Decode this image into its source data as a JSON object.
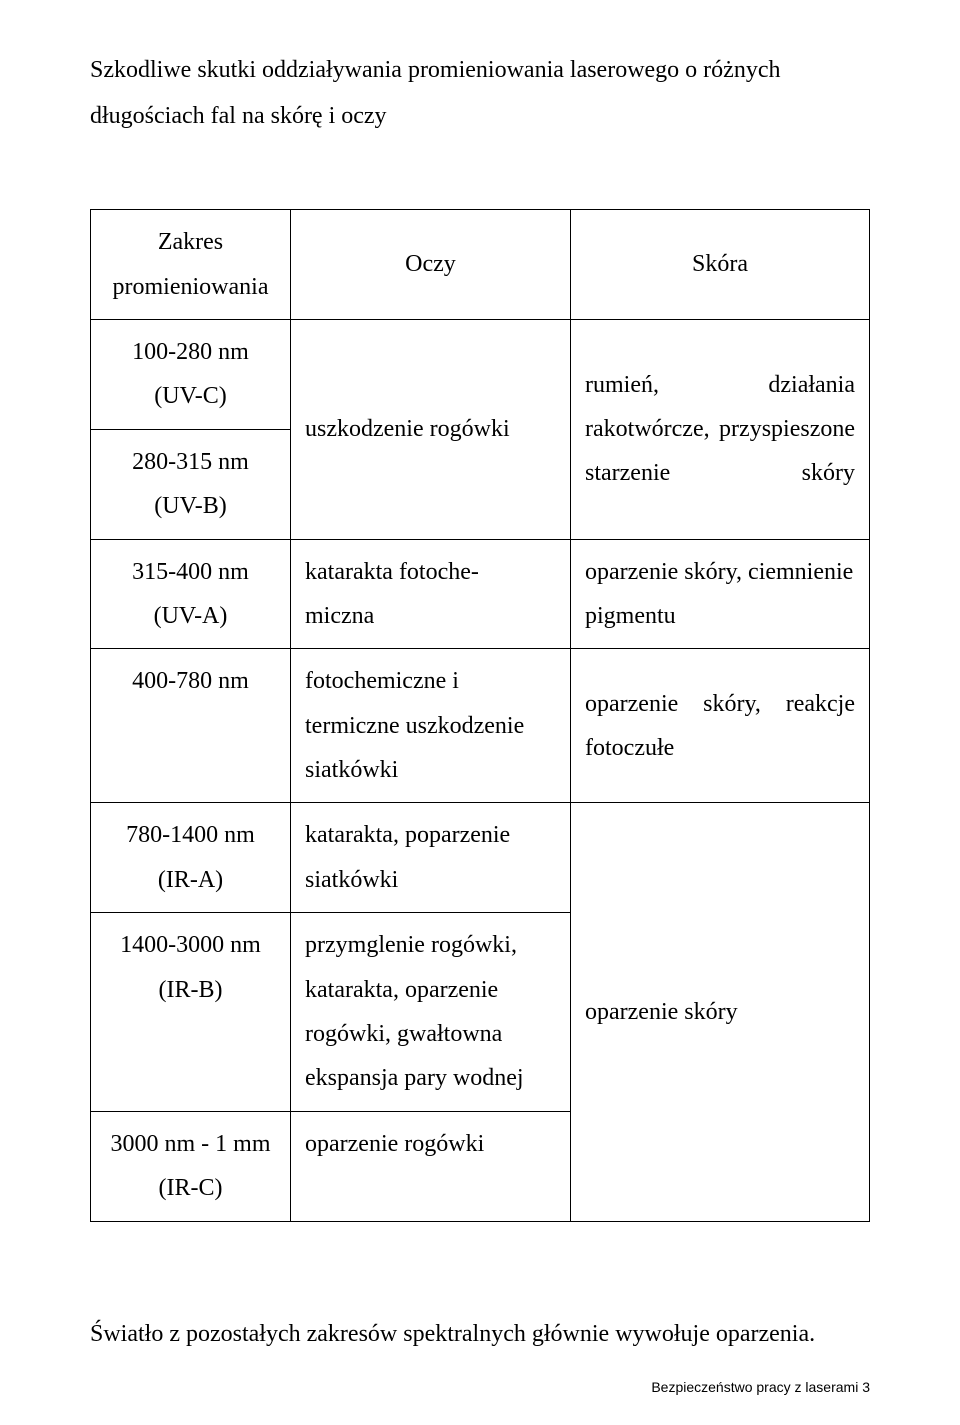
{
  "heading": "Szkodliwe skutki oddziaływania promieniowania laserowego o różnych długościach fal na skórę i oczy",
  "table": {
    "header": {
      "range": "Zakres promieniowania",
      "eyes": "Oczy",
      "skin": "Skóra"
    },
    "rows": {
      "r1a": {
        "range_a": "100-280 nm",
        "range_b": "(UV-C)"
      },
      "r1b": {
        "range_a": "280-315 nm",
        "range_b": "(UV-B)"
      },
      "r1_eyes": "uszkodzenie rogówki",
      "r1_skin": "rumień, działania rakotwórcze, przyspieszone starzenie skóry",
      "r2": {
        "range_a": "315-400 nm",
        "range_b": "(UV-A)",
        "eyes_a": "katarakta fotoche-",
        "eyes_b": "miczna",
        "skin": "oparzenie skóry, ciemnienie pigmentu"
      },
      "r3": {
        "range": "400-780 nm",
        "eyes": "fotochemiczne i termiczne uszkodzenie siatkówki",
        "skin": "oparzenie skóry, reakcje fotoczułe"
      },
      "r4": {
        "range_a": "780-1400 nm",
        "range_b": "(IR-A)",
        "eyes": "katarakta, poparzenie siatkówki"
      },
      "r5": {
        "range_a": "1400-3000 nm",
        "range_b": "(IR-B)",
        "eyes": "przymglenie rogówki, katarakta, oparzenie rogówki, gwałtowna ekspansja pary wodnej"
      },
      "r6": {
        "range_a": "3000 nm - 1 mm",
        "range_b": "(IR-C)",
        "eyes": "oparzenie rogówki"
      },
      "r456_skin": "oparzenie skóry"
    }
  },
  "footnote": "Światło z pozostałych zakresów spektralnych głównie wywołuje oparzenia.",
  "pagefoot": "Bezpieczeństwo pracy z laserami 3"
}
